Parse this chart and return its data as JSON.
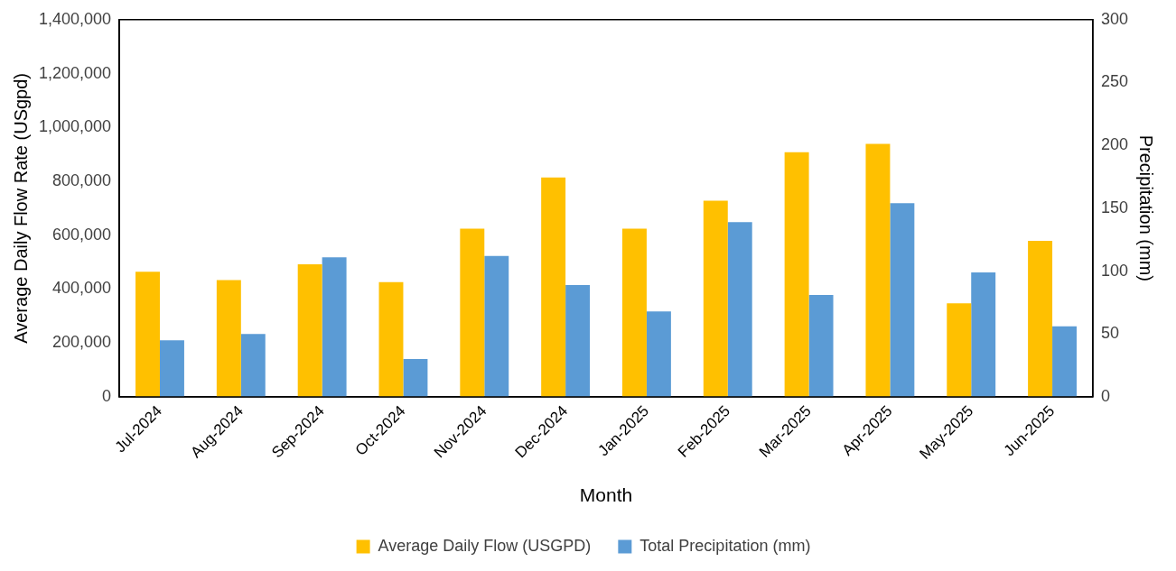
{
  "chart_data": {
    "type": "bar",
    "xlabel": "Month",
    "ylabel": "Average Daily Flow Rate (USgpd)",
    "y2label": "Precipitation (mm)",
    "categories": [
      "Jul-2024",
      "Aug-2024",
      "Sep-2024",
      "Oct-2024",
      "Nov-2024",
      "Dec-2024",
      "Jan-2025",
      "Feb-2025",
      "Mar-2025",
      "Apr-2025",
      "May-2025",
      "Jun-2025"
    ],
    "series": [
      {
        "name": "Average Daily Flow (USGPD)",
        "color": "#ffc000",
        "values": [
          464000,
          433000,
          492000,
          426000,
          624000,
          814000,
          624000,
          728000,
          908000,
          939000,
          347000,
          579000
        ]
      },
      {
        "name": "Total Precipitation (mm)",
        "color": "#5b9bd5",
        "axis": "y2",
        "values": [
          45,
          50,
          111,
          30,
          112,
          89,
          68,
          139,
          81,
          154,
          99,
          56
        ]
      }
    ],
    "ylim": [
      0,
      1400000
    ],
    "yticks": [
      {
        "value": 0,
        "label": "0"
      },
      {
        "value": 200000,
        "label": "200,000"
      },
      {
        "value": 400000,
        "label": "400,000"
      },
      {
        "value": 600000,
        "label": "600,000"
      },
      {
        "value": 800000,
        "label": "800,000"
      },
      {
        "value": 1000000,
        "label": "1,000,000"
      },
      {
        "value": 1200000,
        "label": "1,200,000"
      },
      {
        "value": 1400000,
        "label": "1,400,000"
      }
    ],
    "y2lim": [
      0,
      300
    ],
    "y2ticks": [
      0,
      50,
      100,
      150,
      200,
      250,
      300
    ],
    "grid": false,
    "legend": "bottom"
  }
}
